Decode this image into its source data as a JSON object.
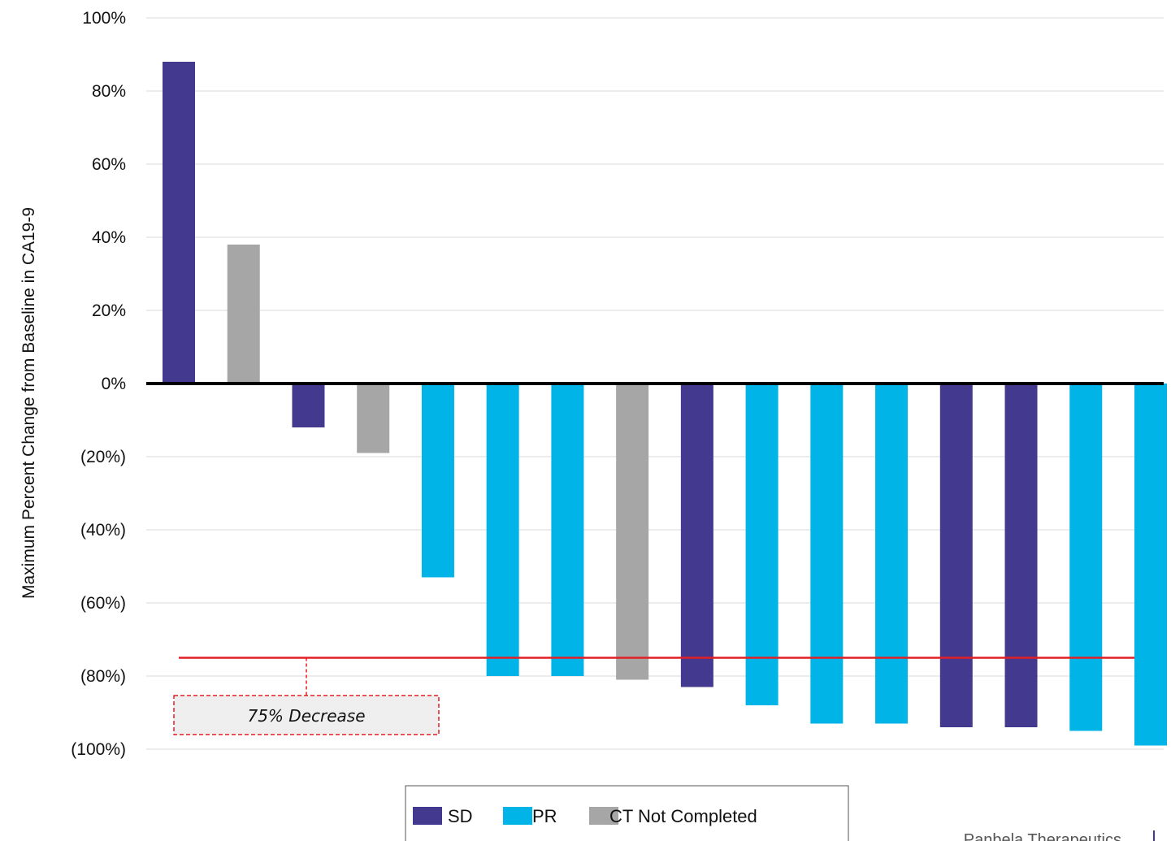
{
  "chart_data": {
    "type": "bar",
    "ylabel": "Maximum Percent Change from Baseline in CA19-9",
    "ylim": [
      -100,
      100
    ],
    "y_ticks": [
      100,
      80,
      60,
      40,
      20,
      0,
      -20,
      -40,
      -60,
      -80,
      -100
    ],
    "y_tick_labels": [
      "100%",
      "80%",
      "60%",
      "40%",
      "20%",
      "0%",
      "(20%)",
      "(40%)",
      "(60%)",
      "(80%)",
      "(100%)"
    ],
    "grid": true,
    "legend_position": "bottom",
    "series": [
      {
        "name": "SD",
        "color": "#433a8f"
      },
      {
        "name": "PR",
        "color": "#00b4e8"
      },
      {
        "name": "CT Not Completed",
        "color": "#a6a6a6"
      }
    ],
    "bars": [
      {
        "value": 88,
        "group": "SD"
      },
      {
        "value": 38,
        "group": "CT Not Completed"
      },
      {
        "value": -12,
        "group": "SD"
      },
      {
        "value": -19,
        "group": "CT Not Completed"
      },
      {
        "value": -53,
        "group": "PR"
      },
      {
        "value": -80,
        "group": "PR"
      },
      {
        "value": -80,
        "group": "PR"
      },
      {
        "value": -81,
        "group": "CT Not Completed"
      },
      {
        "value": -83,
        "group": "SD"
      },
      {
        "value": -88,
        "group": "PR"
      },
      {
        "value": -93,
        "group": "PR"
      },
      {
        "value": -93,
        "group": "PR"
      },
      {
        "value": -94,
        "group": "SD"
      },
      {
        "value": -94,
        "group": "SD"
      },
      {
        "value": -95,
        "group": "PR"
      },
      {
        "value": -99,
        "group": "PR"
      }
    ],
    "reference_line": {
      "value": -75,
      "color": "#e31e24"
    },
    "annotation": {
      "text": "75% Decrease",
      "color": "#e31e24"
    }
  },
  "footer": {
    "text": "Panbela Therapeutics"
  }
}
